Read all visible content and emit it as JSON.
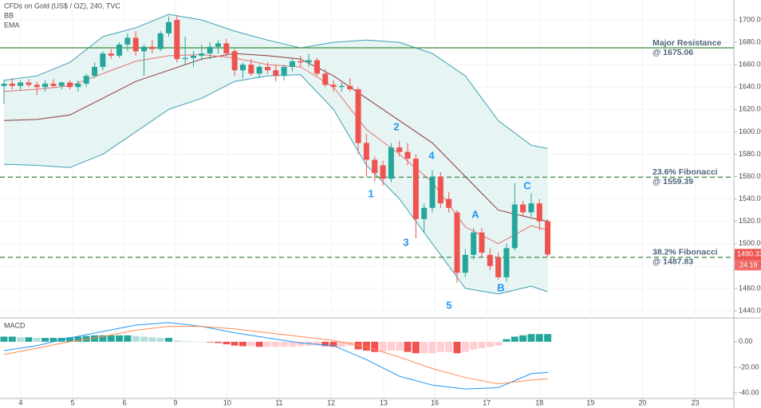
{
  "chart_data": [
    {
      "type": "candlestick",
      "title": "CFDs on Gold (US$ / OZ), 240, TVC",
      "open": [
        1641,
        1643,
        1641,
        1644,
        1642,
        1640,
        1643,
        1641,
        1644,
        1640,
        1643,
        1650,
        1658,
        1670,
        1668,
        1678,
        1684,
        1672,
        1676,
        1674,
        1688,
        1700,
        1665,
        1666,
        1668,
        1670,
        1676,
        1679,
        1672,
        1655,
        1660,
        1652,
        1658,
        1655,
        1650,
        1658,
        1663,
        1662,
        1664,
        1652,
        1642,
        1640,
        1641,
        1638,
        1590,
        1575,
        1570,
        1558,
        1586,
        1582,
        1576,
        1522,
        1532,
        1560,
        1540,
        1528,
        1474,
        1490,
        1510,
        1490,
        1488,
        1470,
        1496,
        1535,
        1528,
        1536,
        1520
      ],
      "high": [
        1646,
        1648,
        1646,
        1647,
        1645,
        1646,
        1647,
        1645,
        1646,
        1646,
        1652,
        1662,
        1672,
        1674,
        1680,
        1688,
        1690,
        1678,
        1682,
        1690,
        1703,
        1704,
        1685,
        1672,
        1678,
        1680,
        1682,
        1683,
        1674,
        1662,
        1665,
        1660,
        1662,
        1660,
        1660,
        1665,
        1668,
        1670,
        1666,
        1656,
        1646,
        1644,
        1648,
        1640,
        1598,
        1578,
        1574,
        1590,
        1592,
        1590,
        1580,
        1536,
        1566,
        1564,
        1546,
        1530,
        1495,
        1514,
        1514,
        1496,
        1492,
        1500,
        1554,
        1538,
        1545,
        1540,
        1522
      ],
      "low": [
        1625,
        1638,
        1637,
        1640,
        1633,
        1636,
        1639,
        1638,
        1638,
        1636,
        1640,
        1648,
        1655,
        1665,
        1666,
        1672,
        1668,
        1650,
        1670,
        1672,
        1685,
        1662,
        1660,
        1658,
        1664,
        1665,
        1670,
        1668,
        1650,
        1648,
        1650,
        1648,
        1652,
        1645,
        1646,
        1654,
        1658,
        1658,
        1650,
        1640,
        1636,
        1636,
        1636,
        1580,
        1560,
        1555,
        1552,
        1555,
        1578,
        1570,
        1505,
        1510,
        1528,
        1532,
        1528,
        1465,
        1470,
        1486,
        1488,
        1476,
        1468,
        1466,
        1494,
        1525,
        1524,
        1512,
        1488
      ],
      "close": [
        1643,
        1641,
        1644,
        1642,
        1640,
        1643,
        1641,
        1644,
        1640,
        1643,
        1650,
        1658,
        1670,
        1668,
        1678,
        1684,
        1672,
        1676,
        1674,
        1688,
        1698,
        1665,
        1666,
        1668,
        1670,
        1676,
        1679,
        1670,
        1655,
        1660,
        1652,
        1658,
        1655,
        1650,
        1658,
        1663,
        1662,
        1664,
        1652,
        1642,
        1640,
        1641,
        1638,
        1590,
        1575,
        1563,
        1558,
        1586,
        1582,
        1576,
        1522,
        1532,
        1560,
        1536,
        1532,
        1474,
        1490,
        1510,
        1492,
        1480,
        1470,
        1496,
        1535,
        1528,
        1536,
        1520,
        1490.33
      ],
      "up_color": "#26a69a",
      "down_color": "#ef5350",
      "bands": {
        "name": "BB",
        "x": [
          0,
          4,
          8,
          12,
          16,
          20,
          24,
          28,
          32,
          36,
          40,
          44,
          48,
          52,
          56,
          60,
          64,
          66
        ],
        "upper": [
          1646,
          1650,
          1662,
          1685,
          1693,
          1705,
          1700,
          1690,
          1682,
          1675,
          1680,
          1682,
          1680,
          1670,
          1650,
          1610,
          1588,
          1585
        ],
        "middle": [
          1610,
          1611,
          1615,
          1630,
          1645,
          1655,
          1665,
          1670,
          1668,
          1665,
          1650,
          1630,
          1610,
          1590,
          1560,
          1530,
          1523,
          1520
        ],
        "lower": [
          1571,
          1570,
          1568,
          1580,
          1600,
          1620,
          1630,
          1645,
          1650,
          1651,
          1620,
          1570,
          1540,
          1500,
          1460,
          1455,
          1462,
          1457
        ],
        "color": "#3f9fb5",
        "middle_color": "#8b3a3a",
        "fill": "#e6f4f3"
      },
      "ema": {
        "name": "EMA",
        "x": [
          0,
          4,
          8,
          12,
          16,
          20,
          24,
          28,
          32,
          36,
          40,
          44,
          48,
          52,
          56,
          60,
          64,
          66
        ],
        "values": [
          1636,
          1638,
          1641,
          1652,
          1663,
          1668,
          1669,
          1666,
          1660,
          1658,
          1640,
          1602,
          1580,
          1555,
          1515,
          1500,
          1516,
          1512
        ],
        "color": "#e57373"
      },
      "levels": [
        {
          "name": "Major Resistance",
          "value": 1675.06,
          "label": "@ 1675.06",
          "style": "solid"
        },
        {
          "name": "23.6% Fibonacci",
          "value": 1559.39,
          "label": "@ 1559.39",
          "style": "dashed"
        },
        {
          "name": "38.2% Fibonacci",
          "value": 1487.83,
          "label": "@ 1487.83",
          "style": "dashed"
        }
      ],
      "level_color": "#3c8c3c",
      "annotations": [
        "1",
        "2",
        "3",
        "4",
        "5",
        "A",
        "B",
        "C"
      ],
      "countdown": "24:19",
      "ylim": [
        1434.3,
        1717.8
      ],
      "yticks": [
        {
          "value": 1440,
          "label": "1440.00"
        },
        {
          "value": 1460,
          "label": "1460.00"
        },
        {
          "value": 1480,
          "label": "1480.00"
        },
        {
          "value": 1500,
          "label": "1500.00"
        },
        {
          "value": 1520,
          "label": "1520.00"
        },
        {
          "value": 1540,
          "label": "1540.00"
        },
        {
          "value": 1560,
          "label": "1560.00"
        },
        {
          "value": 1580,
          "label": "1580.00"
        },
        {
          "value": 1600,
          "label": "1600.00"
        },
        {
          "value": 1620,
          "label": "1620.00"
        },
        {
          "value": 1640,
          "label": "1640.00"
        },
        {
          "value": 1660,
          "label": "1660.00"
        },
        {
          "value": 1680,
          "label": "1680.00"
        },
        {
          "value": 1700,
          "label": "1700.00"
        }
      ],
      "grid": true
    },
    {
      "type": "macd",
      "title": "MACD",
      "histogram": [
        4,
        4,
        3.5,
        3.5,
        3,
        3,
        3,
        3,
        3.5,
        4,
        4.5,
        5,
        5,
        5,
        5,
        5,
        4.5,
        4,
        3.5,
        3,
        3,
        1,
        0.5,
        0.3,
        0,
        -0.5,
        -1,
        -2,
        -3,
        -3.5,
        -3.5,
        -4,
        -4,
        -4,
        -4,
        -4,
        -3.5,
        -3,
        -3,
        -3.5,
        -4,
        -4,
        -3,
        -6,
        -7,
        -8,
        -8,
        -7,
        -7,
        -8,
        -9,
        -9,
        -9,
        -8,
        -8,
        -9,
        -8,
        -6,
        -5,
        -4,
        -3,
        2,
        4,
        5,
        6,
        6,
        6
      ],
      "histogram_colors": [
        "#26a69a",
        "#b2dfdb",
        "#ffcdd2",
        "#ef5350"
      ],
      "series": [
        {
          "name": "MACD",
          "color": "#2196f3",
          "x": [
            0,
            4,
            8,
            12,
            16,
            20,
            24,
            28,
            32,
            36,
            40,
            44,
            48,
            52,
            56,
            60,
            64,
            66
          ],
          "values": [
            -7,
            -3,
            3,
            8,
            13,
            15,
            12,
            7,
            3,
            -1,
            -3,
            -14,
            -27,
            -34,
            -37,
            -36,
            -25,
            -24
          ]
        },
        {
          "name": "Signal",
          "color": "#ff8a50",
          "x": [
            0,
            4,
            8,
            12,
            16,
            20,
            24,
            28,
            32,
            36,
            40,
            44,
            48,
            52,
            56,
            60,
            64,
            66
          ],
          "values": [
            -10,
            -5,
            0,
            4,
            9,
            12,
            12,
            10,
            7,
            4,
            1,
            -4,
            -12,
            -21,
            -28,
            -33,
            -30,
            -29
          ]
        }
      ],
      "ylim": [
        -44.4,
        18
      ],
      "yticks": [
        {
          "value": 0,
          "label": "0.00"
        },
        {
          "value": -20,
          "label": "-20.00"
        },
        {
          "value": -40,
          "label": "-40.00"
        }
      ],
      "xlim": [
        -0.48,
        88.6
      ],
      "xticks": [
        {
          "value": 2.03,
          "label": "4"
        },
        {
          "value": 8.33,
          "label": "5"
        },
        {
          "value": 14.62,
          "label": "6"
        },
        {
          "value": 20.81,
          "label": "9"
        },
        {
          "value": 27.1,
          "label": "10"
        },
        {
          "value": 33.4,
          "label": "11"
        },
        {
          "value": 39.7,
          "label": "12"
        },
        {
          "value": 46.1,
          "label": "13"
        },
        {
          "value": 52.3,
          "label": "16"
        },
        {
          "value": 58.6,
          "label": "17"
        },
        {
          "value": 65.0,
          "label": "18"
        },
        {
          "value": 71.2,
          "label": "19"
        },
        {
          "value": 77.5,
          "label": "20"
        },
        {
          "value": 83.9,
          "label": "23"
        }
      ]
    }
  ]
}
